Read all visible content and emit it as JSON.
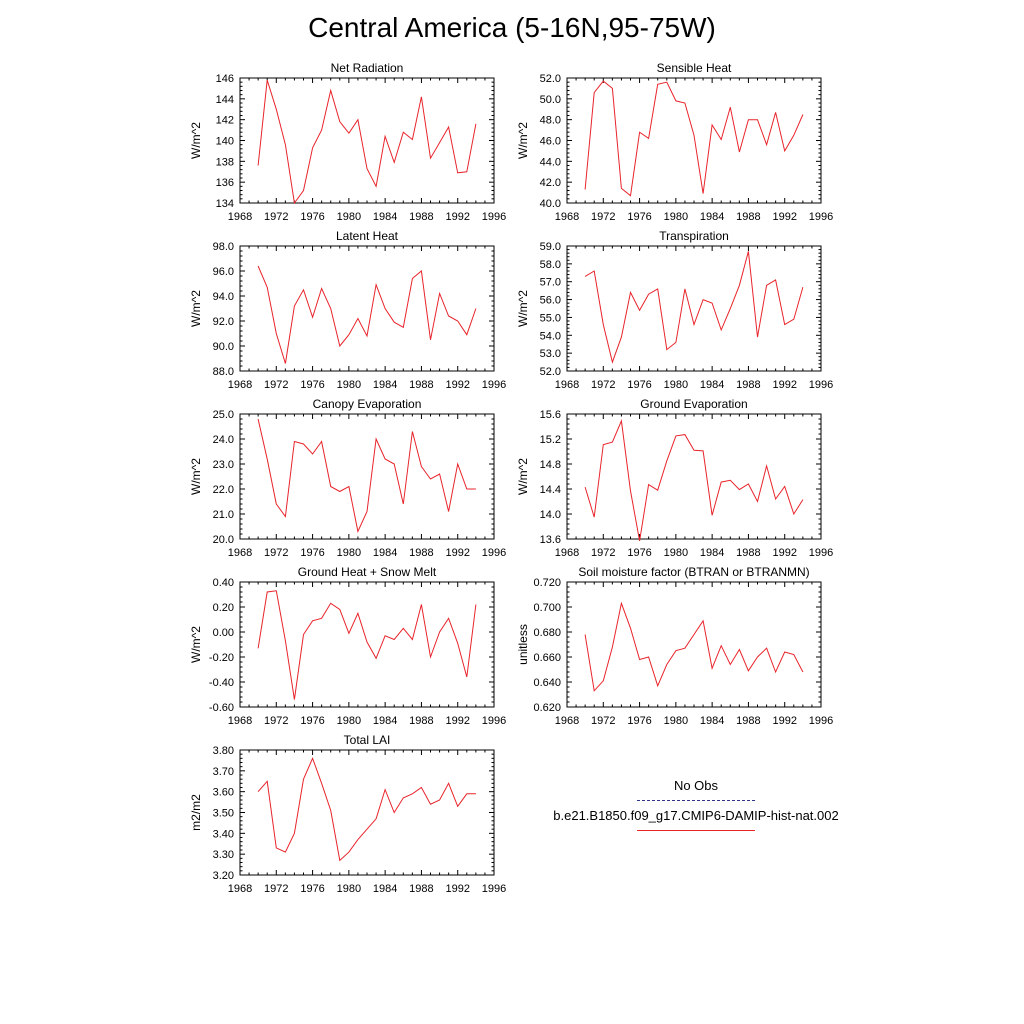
{
  "title": "Central America (5-16N,95-75W)",
  "colors": {
    "model": "#e8242b",
    "obs": "#33338a",
    "axis": "#000000"
  },
  "legend": {
    "entries": [
      {
        "label": "No Obs",
        "style": "dashed",
        "color": "#33338a"
      },
      {
        "label": "b.e21.B1850.f09_g17.CMIP6-DAMIP-hist-nat.002",
        "style": "solid",
        "color": "#e8242b"
      }
    ]
  },
  "chart_data": [
    {
      "type": "line",
      "title": "Net Radiation",
      "ylabel": "W/m^2",
      "xlim": [
        1968,
        1996
      ],
      "xticks": [
        "1968",
        "1972",
        "1976",
        "1980",
        "1984",
        "1988",
        "1992",
        "1996"
      ],
      "ylim": [
        134,
        146
      ],
      "yticks": [
        "134",
        "136",
        "138",
        "140",
        "142",
        "144",
        "146"
      ],
      "x": [
        1970,
        1971,
        1972,
        1973,
        1974,
        1975,
        1976,
        1977,
        1978,
        1979,
        1980,
        1981,
        1982,
        1983,
        1984,
        1985,
        1986,
        1987,
        1988,
        1989,
        1990,
        1991,
        1992,
        1993,
        1994
      ],
      "series": [
        {
          "values": [
            137.6,
            145.8,
            143.0,
            139.6,
            134.0,
            135.2,
            139.3,
            141.0,
            144.8,
            141.8,
            140.7,
            142.0,
            137.3,
            135.6,
            140.4,
            137.9,
            140.8,
            140.1,
            144.2,
            138.3,
            139.8,
            141.3,
            136.9,
            137.0,
            141.6
          ]
        }
      ]
    },
    {
      "type": "line",
      "title": "Sensible Heat",
      "ylabel": "W/m^2",
      "xlim": [
        1968,
        1996
      ],
      "xticks": [
        "1968",
        "1972",
        "1976",
        "1980",
        "1984",
        "1988",
        "1992",
        "1996"
      ],
      "ylim": [
        40,
        52
      ],
      "yticks": [
        "40.0",
        "42.0",
        "44.0",
        "46.0",
        "48.0",
        "50.0",
        "52.0"
      ],
      "x": [
        1970,
        1971,
        1972,
        1973,
        1974,
        1975,
        1976,
        1977,
        1978,
        1979,
        1980,
        1981,
        1982,
        1983,
        1984,
        1985,
        1986,
        1987,
        1988,
        1989,
        1990,
        1991,
        1992,
        1993,
        1994
      ],
      "series": [
        {
          "values": [
            41.3,
            50.6,
            51.7,
            51.0,
            41.4,
            40.7,
            46.8,
            46.2,
            51.4,
            51.6,
            49.8,
            49.6,
            46.5,
            40.9,
            47.5,
            46.1,
            49.2,
            44.9,
            48.0,
            48.0,
            45.6,
            48.7,
            45.0,
            46.5,
            48.5
          ]
        }
      ]
    },
    {
      "type": "line",
      "title": "Latent Heat",
      "ylabel": "W/m^2",
      "xlim": [
        1968,
        1996
      ],
      "xticks": [
        "1968",
        "1972",
        "1976",
        "1980",
        "1984",
        "1988",
        "1992",
        "1996"
      ],
      "ylim": [
        88,
        98
      ],
      "yticks": [
        "88.0",
        "90.0",
        "92.0",
        "94.0",
        "96.0",
        "98.0"
      ],
      "x": [
        1970,
        1971,
        1972,
        1973,
        1974,
        1975,
        1976,
        1977,
        1978,
        1979,
        1980,
        1981,
        1982,
        1983,
        1984,
        1985,
        1986,
        1987,
        1988,
        1989,
        1990,
        1991,
        1992,
        1993,
        1994
      ],
      "series": [
        {
          "values": [
            96.4,
            94.7,
            91.0,
            88.6,
            93.2,
            94.5,
            92.3,
            94.6,
            93.0,
            90.0,
            90.9,
            92.2,
            90.8,
            94.9,
            93.0,
            91.9,
            91.5,
            95.4,
            96.0,
            90.5,
            94.2,
            92.4,
            92.0,
            90.9,
            93.0
          ]
        }
      ]
    },
    {
      "type": "line",
      "title": "Transpiration",
      "ylabel": "W/m^2",
      "xlim": [
        1968,
        1996
      ],
      "xticks": [
        "1968",
        "1972",
        "1976",
        "1980",
        "1984",
        "1988",
        "1992",
        "1996"
      ],
      "ylim": [
        52,
        59
      ],
      "yticks": [
        "52.0",
        "53.0",
        "54.0",
        "55.0",
        "56.0",
        "57.0",
        "58.0",
        "59.0"
      ],
      "x": [
        1970,
        1971,
        1972,
        1973,
        1974,
        1975,
        1976,
        1977,
        1978,
        1979,
        1980,
        1981,
        1982,
        1983,
        1984,
        1985,
        1986,
        1987,
        1988,
        1989,
        1990,
        1991,
        1992,
        1993,
        1994
      ],
      "series": [
        {
          "values": [
            57.3,
            57.6,
            54.6,
            52.5,
            53.9,
            56.4,
            55.4,
            56.3,
            56.6,
            53.2,
            53.6,
            56.6,
            54.6,
            56.0,
            55.8,
            54.3,
            55.5,
            56.8,
            58.7,
            53.9,
            56.8,
            57.1,
            54.6,
            54.9,
            56.7
          ]
        }
      ]
    },
    {
      "type": "line",
      "title": "Canopy Evaporation",
      "ylabel": "W/m^2",
      "xlim": [
        1968,
        1996
      ],
      "xticks": [
        "1968",
        "1972",
        "1976",
        "1980",
        "1984",
        "1988",
        "1992",
        "1996"
      ],
      "ylim": [
        20,
        25
      ],
      "yticks": [
        "20.0",
        "21.0",
        "22.0",
        "23.0",
        "24.0",
        "25.0"
      ],
      "x": [
        1970,
        1971,
        1972,
        1973,
        1974,
        1975,
        1976,
        1977,
        1978,
        1979,
        1980,
        1981,
        1982,
        1983,
        1984,
        1985,
        1986,
        1987,
        1988,
        1989,
        1990,
        1991,
        1992,
        1993,
        1994
      ],
      "series": [
        {
          "values": [
            24.8,
            23.2,
            21.4,
            20.9,
            23.9,
            23.8,
            23.4,
            23.9,
            22.1,
            21.9,
            22.1,
            20.3,
            21.1,
            24.0,
            23.2,
            23.0,
            21.4,
            24.3,
            22.9,
            22.4,
            22.6,
            21.1,
            23.0,
            22.0,
            22.0
          ]
        }
      ]
    },
    {
      "type": "line",
      "title": "Ground Evaporation",
      "ylabel": "W/m^2",
      "xlim": [
        1968,
        1996
      ],
      "xticks": [
        "1968",
        "1972",
        "1976",
        "1980",
        "1984",
        "1988",
        "1992",
        "1996"
      ],
      "ylim": [
        13.6,
        15.6
      ],
      "yticks": [
        "13.6",
        "14.0",
        "14.4",
        "14.8",
        "15.2",
        "15.6"
      ],
      "x": [
        1970,
        1971,
        1972,
        1973,
        1974,
        1975,
        1976,
        1977,
        1978,
        1979,
        1980,
        1981,
        1982,
        1983,
        1984,
        1985,
        1986,
        1987,
        1988,
        1989,
        1990,
        1991,
        1992,
        1993,
        1994
      ],
      "series": [
        {
          "values": [
            14.43,
            13.95,
            15.11,
            15.15,
            15.49,
            14.37,
            13.57,
            14.47,
            14.38,
            14.85,
            15.25,
            15.27,
            15.02,
            15.01,
            13.98,
            14.51,
            14.54,
            14.39,
            14.48,
            14.2,
            14.77,
            14.24,
            14.44,
            14.0,
            14.23
          ]
        }
      ]
    },
    {
      "type": "line",
      "title": "Ground Heat + Snow Melt",
      "ylabel": "W/m^2",
      "xlim": [
        1968,
        1996
      ],
      "xticks": [
        "1968",
        "1972",
        "1976",
        "1980",
        "1984",
        "1988",
        "1992",
        "1996"
      ],
      "ylim": [
        -0.6,
        0.4
      ],
      "yticks": [
        "-0.60",
        "-0.40",
        "-0.20",
        "0.00",
        "0.20",
        "0.40"
      ],
      "x": [
        1970,
        1971,
        1972,
        1973,
        1974,
        1975,
        1976,
        1977,
        1978,
        1979,
        1980,
        1981,
        1982,
        1983,
        1984,
        1985,
        1986,
        1987,
        1988,
        1989,
        1990,
        1991,
        1992,
        1993,
        1994
      ],
      "series": [
        {
          "values": [
            -0.13,
            0.32,
            0.33,
            -0.07,
            -0.54,
            -0.02,
            0.09,
            0.11,
            0.23,
            0.18,
            -0.01,
            0.15,
            -0.08,
            -0.21,
            -0.03,
            -0.06,
            0.03,
            -0.06,
            0.22,
            -0.2,
            0.0,
            0.11,
            -0.09,
            -0.36,
            0.22
          ]
        }
      ]
    },
    {
      "type": "line",
      "title": "Soil moisture factor (BTRAN or BTRANMN)",
      "ylabel": "unitless",
      "xlim": [
        1968,
        1996
      ],
      "xticks": [
        "1968",
        "1972",
        "1976",
        "1980",
        "1984",
        "1988",
        "1992",
        "1996"
      ],
      "ylim": [
        0.62,
        0.72
      ],
      "yticks": [
        "0.620",
        "0.640",
        "0.660",
        "0.680",
        "0.700",
        "0.720"
      ],
      "x": [
        1970,
        1971,
        1972,
        1973,
        1974,
        1975,
        1976,
        1977,
        1978,
        1979,
        1980,
        1981,
        1982,
        1983,
        1984,
        1985,
        1986,
        1987,
        1988,
        1989,
        1990,
        1991,
        1992,
        1993,
        1994
      ],
      "series": [
        {
          "values": [
            0.678,
            0.633,
            0.641,
            0.668,
            0.703,
            0.683,
            0.658,
            0.66,
            0.637,
            0.654,
            0.665,
            0.667,
            0.678,
            0.689,
            0.651,
            0.669,
            0.654,
            0.666,
            0.649,
            0.66,
            0.667,
            0.648,
            0.664,
            0.662,
            0.648
          ]
        }
      ]
    },
    {
      "type": "line",
      "title": "Total LAI",
      "ylabel": "m2/m2",
      "xlim": [
        1968,
        1996
      ],
      "xticks": [
        "1968",
        "1972",
        "1976",
        "1980",
        "1984",
        "1988",
        "1992",
        "1996"
      ],
      "ylim": [
        3.2,
        3.8
      ],
      "yticks": [
        "3.20",
        "3.30",
        "3.40",
        "3.50",
        "3.60",
        "3.70",
        "3.80"
      ],
      "x": [
        1970,
        1971,
        1972,
        1973,
        1974,
        1975,
        1976,
        1977,
        1978,
        1979,
        1980,
        1981,
        1982,
        1983,
        1984,
        1985,
        1986,
        1987,
        1988,
        1989,
        1990,
        1991,
        1992,
        1993,
        1994
      ],
      "series": [
        {
          "values": [
            3.6,
            3.65,
            3.33,
            3.31,
            3.4,
            3.66,
            3.76,
            3.64,
            3.51,
            3.27,
            3.31,
            3.37,
            3.42,
            3.47,
            3.61,
            3.5,
            3.57,
            3.59,
            3.62,
            3.54,
            3.56,
            3.64,
            3.53,
            3.59,
            3.59
          ]
        }
      ]
    }
  ]
}
